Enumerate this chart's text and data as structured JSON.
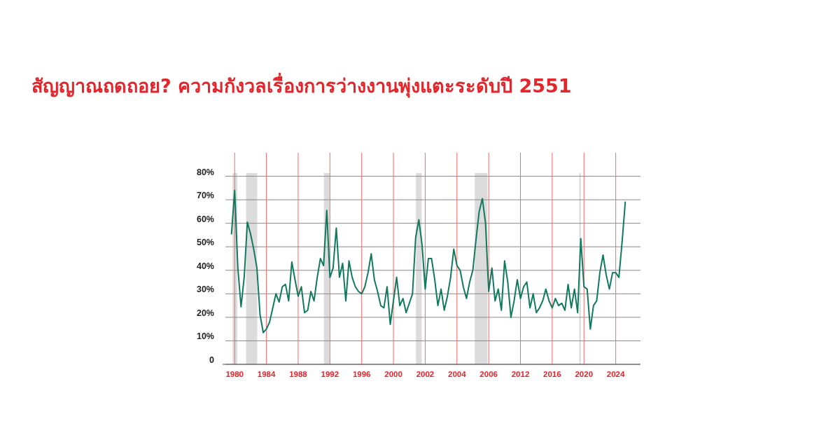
{
  "chart_data": {
    "type": "line",
    "title": "สัญญาณถดถอย? ความกังวลเรื่องการว่างงานพุ่งแตะระดับปี 2551",
    "categories": [
      null,
      "1980",
      null,
      null,
      null,
      null,
      null,
      null,
      null,
      null,
      null,
      "1984",
      null,
      null,
      null,
      null,
      null,
      null,
      null,
      null,
      null,
      "1988",
      null,
      null,
      null,
      null,
      null,
      null,
      null,
      null,
      null,
      "1992",
      null,
      null,
      null,
      null,
      null,
      null,
      null,
      null,
      null,
      "1996",
      null,
      null,
      null,
      null,
      null,
      null,
      null,
      null,
      null,
      "2000",
      null,
      null,
      null,
      null,
      null,
      null,
      null,
      null,
      null,
      "2002",
      null,
      null,
      null,
      null,
      null,
      null,
      null,
      null,
      null,
      "2004",
      null,
      null,
      null,
      null,
      null,
      null,
      null,
      null,
      null,
      "2006",
      null,
      null,
      null,
      null,
      null,
      null,
      null,
      null,
      null,
      "2012",
      null,
      null,
      null,
      null,
      null,
      null,
      null,
      null,
      null,
      "2016",
      null,
      null,
      null,
      null,
      null,
      null,
      null,
      null,
      null,
      "2020",
      null,
      null,
      null,
      null,
      null,
      null,
      null,
      null,
      null,
      "2024",
      null,
      null,
      null
    ],
    "series": [
      {
        "color": "#117a5e",
        "values": [
          55.5,
          74,
          41,
          24.5,
          37,
          60.5,
          55.5,
          49,
          41,
          21,
          13.5,
          15,
          18,
          24,
          30,
          26.5,
          33,
          34,
          27,
          43.5,
          36,
          29,
          33,
          22,
          23,
          31,
          27,
          37,
          45,
          42,
          65.5,
          37,
          41,
          58,
          37,
          43,
          27,
          44,
          37,
          33,
          31,
          30,
          33,
          39,
          47,
          36,
          31,
          25,
          24,
          33,
          17,
          27,
          37,
          25,
          28,
          22,
          26,
          30,
          54,
          61.5,
          51,
          32,
          45,
          45,
          36,
          25,
          32,
          23,
          29,
          37,
          49,
          42,
          40,
          33,
          28,
          35,
          40,
          53,
          65,
          70.5,
          60,
          31,
          41,
          27,
          32,
          23,
          44,
          35,
          20,
          27,
          36,
          28,
          33,
          35,
          24,
          30,
          22,
          24,
          27,
          32,
          27,
          24,
          28,
          25,
          26,
          23,
          34,
          24,
          32,
          22,
          53.5,
          33,
          32,
          15,
          25,
          27,
          39,
          46.5,
          38,
          32,
          39,
          39,
          37,
          52,
          69
        ]
      }
    ],
    "ylim": [
      0,
      90
    ],
    "yticks": [
      0,
      {
        "value": 10,
        "label": "10%"
      },
      {
        "value": 20,
        "label": "20%"
      },
      {
        "value": 30,
        "label": "30%"
      },
      {
        "value": 40,
        "label": "40%"
      },
      {
        "value": 50,
        "label": "50%"
      },
      {
        "value": 60,
        "label": "60%"
      },
      {
        "value": 70,
        "label": "70%"
      },
      {
        "value": 80,
        "label": "80%"
      }
    ],
    "grid": true,
    "marker": "none",
    "line_style": "solid"
  }
}
